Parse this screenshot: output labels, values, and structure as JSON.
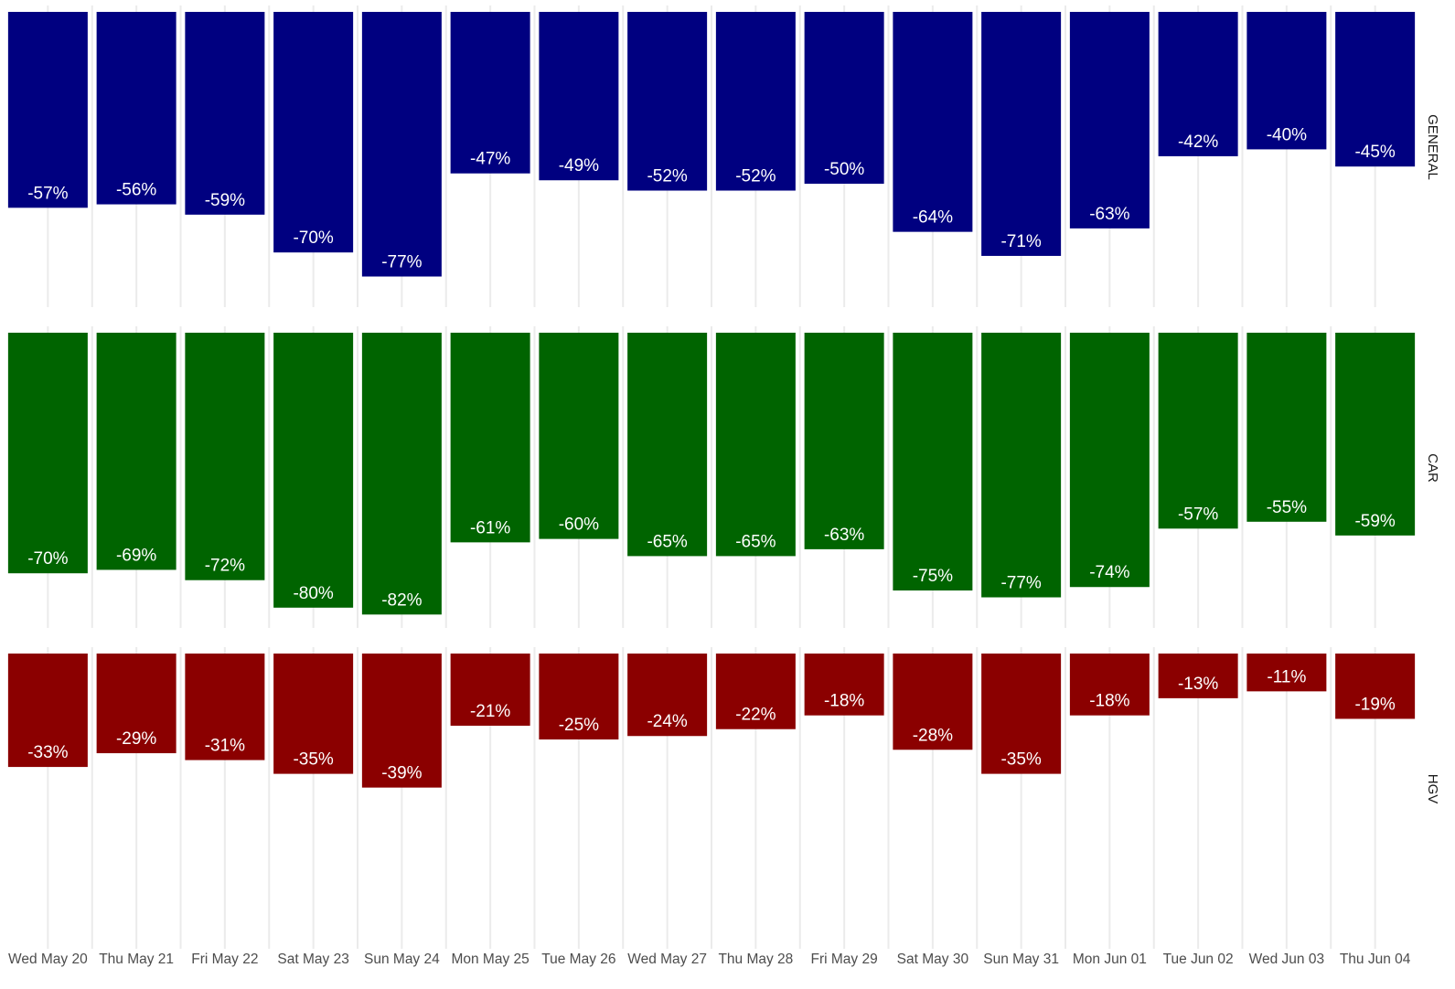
{
  "chart_data": {
    "type": "bar",
    "facet_layout": "rows",
    "value_direction": "downward",
    "grid": "vertical-only",
    "label_suffix": "%",
    "categories": [
      "Wed May 20",
      "Thu May 21",
      "Fri May 22",
      "Sat May 23",
      "Sun May 24",
      "Mon May 25",
      "Tue May 26",
      "Wed May 27",
      "Thu May 28",
      "Fri May 29",
      "Sat May 30",
      "Sun May 31",
      "Mon Jun 01",
      "Tue Jun 02",
      "Wed Jun 03",
      "Thu Jun 04"
    ],
    "ylim": [
      -100,
      0
    ],
    "series": [
      {
        "name": "GENERAL",
        "color": "#000080",
        "values": [
          -57,
          -56,
          -59,
          -70,
          -77,
          -47,
          -49,
          -52,
          -52,
          -50,
          -64,
          -71,
          -63,
          -42,
          -40,
          -45
        ]
      },
      {
        "name": "CAR",
        "color": "#006400",
        "values": [
          -70,
          -69,
          -72,
          -80,
          -82,
          -61,
          -60,
          -65,
          -65,
          -63,
          -75,
          -77,
          -74,
          -57,
          -55,
          -59
        ]
      },
      {
        "name": "HGV",
        "color": "#8b0000",
        "values": [
          -33,
          -29,
          -31,
          -35,
          -39,
          -21,
          -25,
          -24,
          -22,
          -18,
          -28,
          -35,
          -18,
          -13,
          -11,
          -19
        ]
      }
    ]
  }
}
